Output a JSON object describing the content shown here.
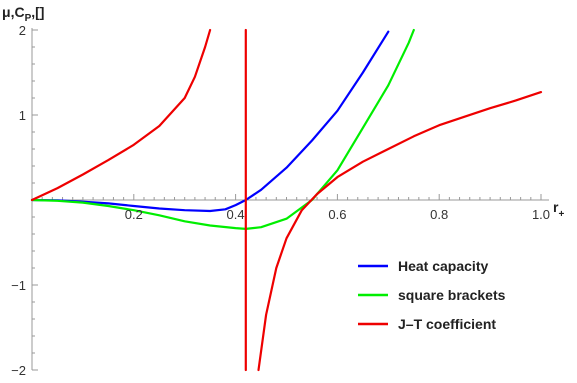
{
  "chart_data": {
    "type": "line",
    "title": "",
    "xlabel": "r",
    "xlabel_sub": "+",
    "ylabel": "μ,C",
    "ylabel_sub": "P",
    "ylabel_suffix": ",[]",
    "xlim": [
      0.0,
      1.0
    ],
    "ylim": [
      -2,
      2
    ],
    "x_ticks": [
      {
        "value": 0.2,
        "label": "0.2"
      },
      {
        "value": 0.4,
        "label": "0.4"
      },
      {
        "value": 0.6,
        "label": "0.6"
      },
      {
        "value": 0.8,
        "label": "0.8"
      },
      {
        "value": 1.0,
        "label": "1.0"
      }
    ],
    "y_ticks": [
      {
        "value": 2,
        "label": "2"
      },
      {
        "value": 1,
        "label": "1"
      },
      {
        "value": -1,
        "label": "−1"
      },
      {
        "value": -2,
        "label": "−2"
      }
    ],
    "grid": false,
    "legend_position": "bottom-right",
    "series": [
      {
        "name": "Heat capacity",
        "color": "#0000ff",
        "points": [
          [
            0.0,
            0.0
          ],
          [
            0.05,
            -0.005
          ],
          [
            0.1,
            -0.02
          ],
          [
            0.15,
            -0.04
          ],
          [
            0.2,
            -0.07
          ],
          [
            0.25,
            -0.1
          ],
          [
            0.3,
            -0.12
          ],
          [
            0.35,
            -0.13
          ],
          [
            0.38,
            -0.11
          ],
          [
            0.4,
            -0.06
          ],
          [
            0.42,
            0.0
          ],
          [
            0.45,
            0.12
          ],
          [
            0.5,
            0.38
          ],
          [
            0.55,
            0.7
          ],
          [
            0.6,
            1.05
          ],
          [
            0.65,
            1.5
          ],
          [
            0.7,
            1.98
          ]
        ]
      },
      {
        "name": "square brackets",
        "color": "#00ee00",
        "points": [
          [
            0.0,
            0.0
          ],
          [
            0.05,
            -0.01
          ],
          [
            0.1,
            -0.03
          ],
          [
            0.15,
            -0.07
          ],
          [
            0.2,
            -0.12
          ],
          [
            0.25,
            -0.18
          ],
          [
            0.3,
            -0.25
          ],
          [
            0.35,
            -0.3
          ],
          [
            0.4,
            -0.33
          ],
          [
            0.42,
            -0.34
          ],
          [
            0.45,
            -0.32
          ],
          [
            0.5,
            -0.22
          ],
          [
            0.55,
            0.0
          ],
          [
            0.6,
            0.35
          ],
          [
            0.65,
            0.85
          ],
          [
            0.7,
            1.35
          ],
          [
            0.74,
            1.85
          ],
          [
            0.75,
            2.0
          ]
        ]
      },
      {
        "name": "J–T coefficient",
        "color": "#ee0000",
        "segments": [
          [
            [
              0.0,
              0.0
            ],
            [
              0.05,
              0.14
            ],
            [
              0.1,
              0.3
            ],
            [
              0.15,
              0.47
            ],
            [
              0.2,
              0.65
            ],
            [
              0.25,
              0.87
            ],
            [
              0.3,
              1.2
            ],
            [
              0.32,
              1.45
            ],
            [
              0.34,
              1.8
            ],
            [
              0.35,
              2.0
            ]
          ],
          [
            [
              0.42,
              -2.0
            ],
            [
              0.42,
              2.0
            ]
          ],
          [
            [
              0.445,
              -2.0
            ],
            [
              0.46,
              -1.35
            ],
            [
              0.48,
              -0.8
            ],
            [
              0.5,
              -0.45
            ],
            [
              0.53,
              -0.12
            ],
            [
              0.56,
              0.07
            ],
            [
              0.6,
              0.27
            ],
            [
              0.65,
              0.45
            ],
            [
              0.7,
              0.6
            ],
            [
              0.75,
              0.75
            ],
            [
              0.8,
              0.88
            ],
            [
              0.85,
              0.98
            ],
            [
              0.9,
              1.08
            ],
            [
              0.95,
              1.17
            ],
            [
              1.0,
              1.27
            ]
          ]
        ]
      }
    ]
  }
}
